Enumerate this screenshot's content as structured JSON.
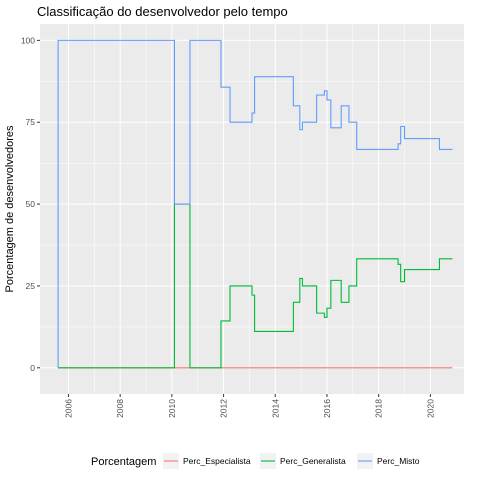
{
  "chart_data": {
    "type": "line",
    "title": "Classificação do desenvolvedor pelo tempo",
    "xlabel": "",
    "ylabel": "Porcentagem de desenvolvedores",
    "xlim": [
      2004.9,
      2021.3
    ],
    "ylim": [
      -8,
      105
    ],
    "x_ticks": [
      2006,
      2008,
      2010,
      2012,
      2014,
      2016,
      2018,
      2020
    ],
    "x_tick_labels": [
      "2006",
      "2008",
      "2010",
      "2012",
      "2014",
      "2016",
      "2018",
      "2020"
    ],
    "y_ticks": [
      0,
      25,
      50,
      75,
      100
    ],
    "y_tick_labels": [
      "0",
      "25",
      "50",
      "75",
      "100"
    ],
    "legend": {
      "title": "Porcentagem",
      "position": "bottom"
    },
    "series": [
      {
        "name": "Perc_Especialista",
        "color": "#F8766D",
        "x": [
          2005.6,
          2020.85
        ],
        "values": [
          0,
          0
        ]
      },
      {
        "name": "Perc_Generalista",
        "color": "#00BA38",
        "x": [
          2005.6,
          2010.1,
          2010.1,
          2010.7,
          2010.7,
          2011.9,
          2011.9,
          2012.25,
          2012.25,
          2012.7,
          2013.1,
          2013.1,
          2013.2,
          2013.2,
          2014.7,
          2014.7,
          2014.95,
          2014.95,
          2015.05,
          2015.05,
          2015.25,
          2015.25,
          2015.6,
          2015.6,
          2015.9,
          2015.9,
          2016.0,
          2016.0,
          2016.15,
          2016.15,
          2016.55,
          2016.55,
          2016.85,
          2016.85,
          2017.15,
          2017.15,
          2017.45,
          2017.45,
          2018.75,
          2018.75,
          2018.85,
          2018.85,
          2019.0,
          2019.0,
          2020.35,
          2020.35,
          2020.85
        ],
        "values": [
          0,
          0,
          50,
          50,
          0,
          0,
          14.3,
          14.3,
          25,
          25,
          25,
          22.2,
          22.2,
          11.1,
          11.1,
          20,
          20,
          27.3,
          27.3,
          25,
          25,
          25,
          25,
          16.7,
          16.7,
          15.4,
          15.4,
          18.2,
          18.2,
          26.7,
          26.7,
          20,
          20,
          25,
          25,
          33.3,
          33.3,
          33.3,
          33.3,
          31.6,
          31.6,
          26.3,
          26.3,
          30,
          30,
          33.3,
          33.3
        ]
      },
      {
        "name": "Perc_Misto",
        "color": "#619CFF",
        "x": [
          2005.6,
          2005.6,
          2010.1,
          2010.1,
          2010.7,
          2010.7,
          2011.9,
          2011.9,
          2012.25,
          2012.25,
          2012.7,
          2013.1,
          2013.1,
          2013.2,
          2013.2,
          2014.7,
          2014.7,
          2014.95,
          2014.95,
          2015.05,
          2015.05,
          2015.25,
          2015.25,
          2015.6,
          2015.6,
          2015.9,
          2015.9,
          2016.0,
          2016.0,
          2016.15,
          2016.15,
          2016.55,
          2016.55,
          2016.85,
          2016.85,
          2017.15,
          2017.15,
          2017.45,
          2017.45,
          2018.75,
          2018.75,
          2018.85,
          2018.85,
          2019.0,
          2019.0,
          2020.35,
          2020.35,
          2020.85
        ],
        "values": [
          0,
          100,
          100,
          50,
          50,
          100,
          100,
          85.7,
          85.7,
          75,
          75,
          75,
          77.8,
          77.8,
          88.9,
          88.9,
          80,
          80,
          72.7,
          72.7,
          75,
          75,
          75,
          75,
          83.3,
          83.3,
          84.6,
          84.6,
          81.8,
          81.8,
          73.3,
          73.3,
          80,
          80,
          75,
          75,
          66.7,
          66.7,
          66.7,
          66.7,
          68.4,
          68.4,
          73.7,
          73.7,
          70,
          70,
          66.7,
          66.7
        ]
      }
    ]
  }
}
